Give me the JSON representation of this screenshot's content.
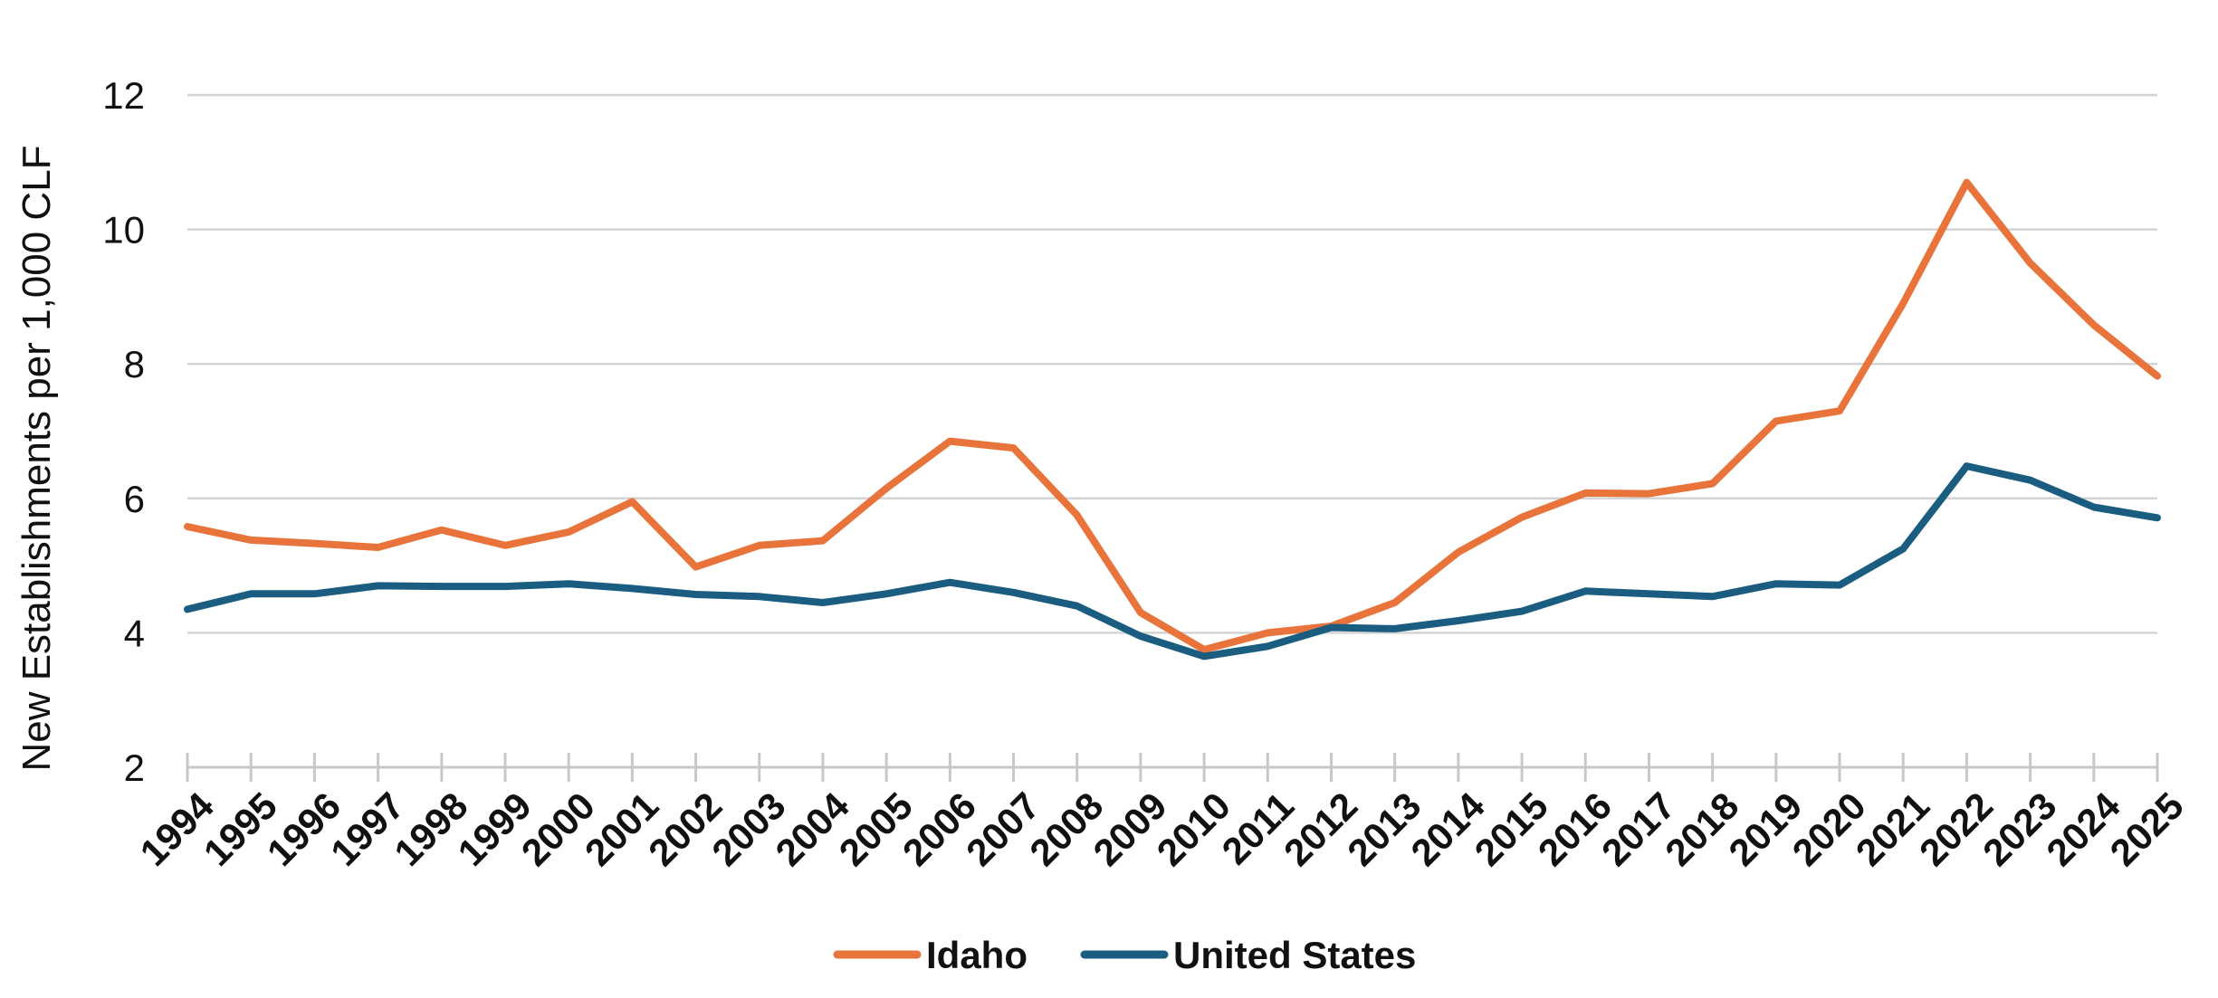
{
  "chart_data": {
    "type": "line",
    "title": "",
    "xlabel": "",
    "ylabel": "New Establishments per 1,000 CLF",
    "ylim": [
      2,
      12
    ],
    "yticks": [
      2,
      4,
      6,
      8,
      10,
      12
    ],
    "grid": true,
    "legend_position": "bottom",
    "categories": [
      "1994",
      "1995",
      "1996",
      "1997",
      "1998",
      "1999",
      "2000",
      "2001",
      "2002",
      "2003",
      "2004",
      "2005",
      "2006",
      "2007",
      "2008",
      "2009",
      "2010",
      "2011",
      "2012",
      "2013",
      "2014",
      "2015",
      "2016",
      "2017",
      "2018",
      "2019",
      "2020",
      "2021",
      "2022",
      "2023",
      "2024",
      "2025"
    ],
    "series": [
      {
        "name": "Idaho",
        "color": "#E8743B",
        "values": [
          5.58,
          5.38,
          5.33,
          5.27,
          5.53,
          5.3,
          5.5,
          5.95,
          4.98,
          5.3,
          5.37,
          6.15,
          6.85,
          6.75,
          5.75,
          4.3,
          3.75,
          4.0,
          4.1,
          4.45,
          5.2,
          5.72,
          6.08,
          6.07,
          6.22,
          7.15,
          7.3,
          8.9,
          10.7,
          9.5,
          8.58,
          7.82
        ]
      },
      {
        "name": "United States",
        "color": "#1A5D80",
        "values": [
          4.35,
          4.58,
          4.58,
          4.7,
          4.69,
          4.69,
          4.73,
          4.66,
          4.57,
          4.54,
          4.45,
          4.58,
          4.75,
          4.6,
          4.4,
          3.95,
          3.65,
          3.8,
          4.08,
          4.06,
          4.18,
          4.32,
          4.62,
          4.58,
          4.54,
          4.73,
          4.71,
          5.25,
          6.48,
          6.27,
          5.87,
          5.71
        ]
      }
    ]
  }
}
